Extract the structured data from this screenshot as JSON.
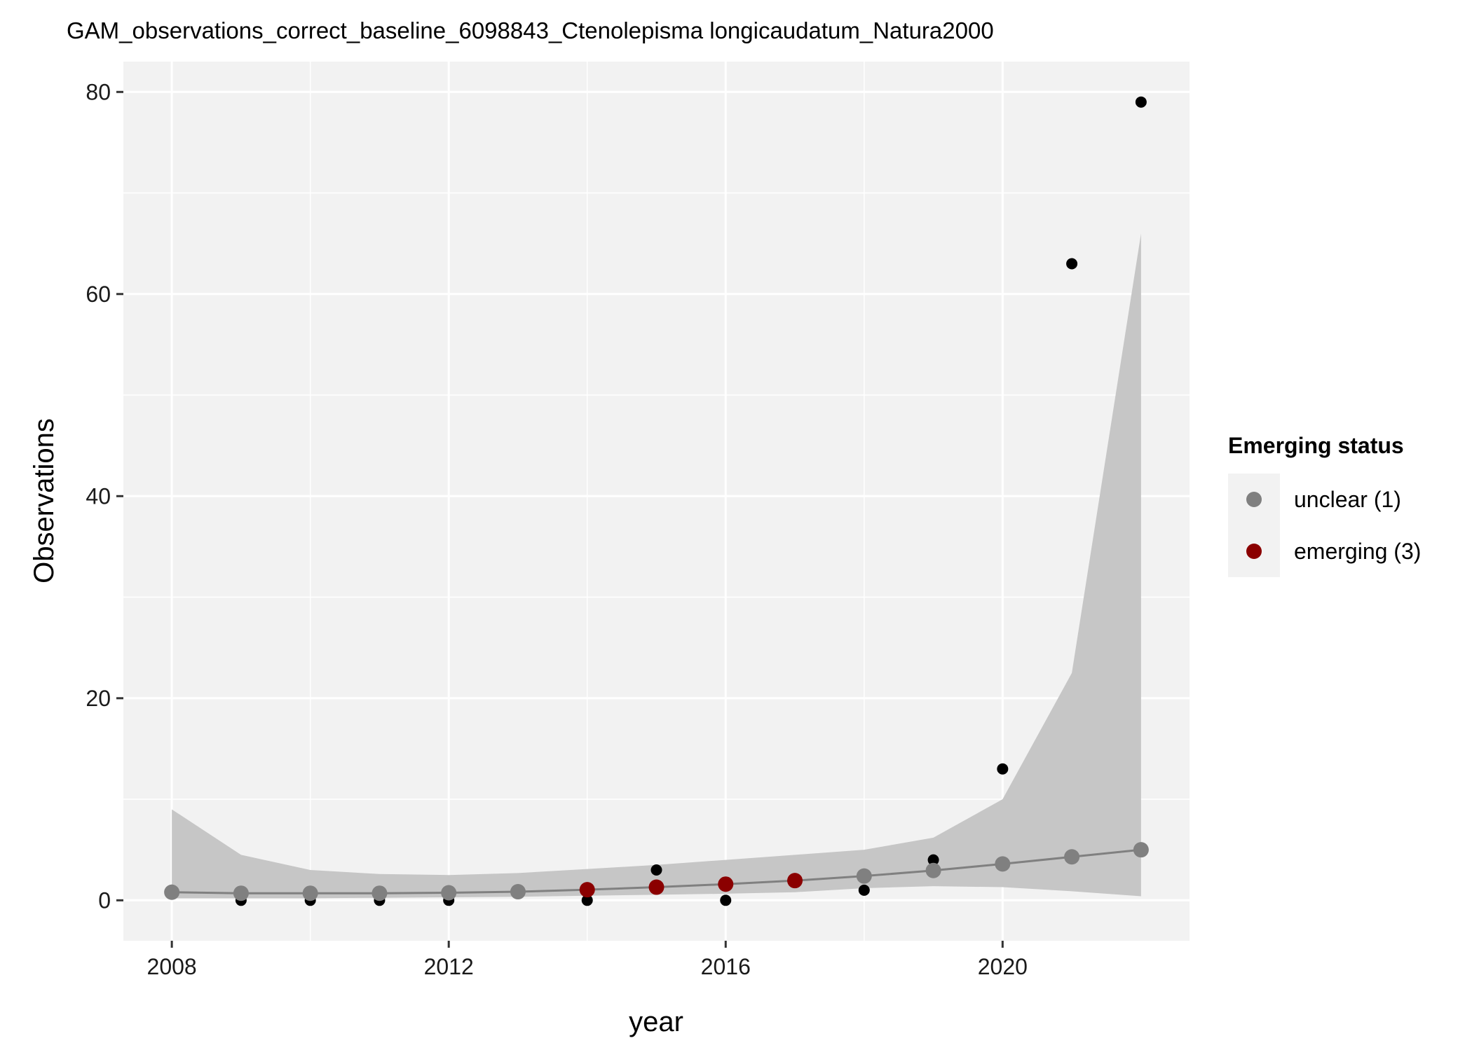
{
  "chart_data": {
    "type": "scatter",
    "title": "GAM_observations_correct_baseline_6098843_Ctenolepisma longicaudatum_Natura2000",
    "xlabel": "year",
    "ylabel": "Observations",
    "xlim": [
      2007.3,
      2022.7
    ],
    "ylim": [
      -4,
      83
    ],
    "x_ticks": [
      2008,
      2012,
      2016,
      2020
    ],
    "x_tick_labels": [
      "2008",
      "2012",
      "2016",
      "2020"
    ],
    "y_ticks": [
      0,
      20,
      40,
      60,
      80
    ],
    "y_tick_labels": [
      "0",
      "20",
      "40",
      "60",
      "80"
    ],
    "grid": true,
    "panel_background": "#f2f2f2",
    "observed": {
      "color": "#000000",
      "x": [
        2008,
        2009,
        2010,
        2011,
        2012,
        2013,
        2014,
        2015,
        2016,
        2017,
        2018,
        2019,
        2020,
        2021,
        2022
      ],
      "y": [
        1,
        0,
        0,
        0,
        0,
        1,
        0,
        3,
        0,
        2,
        1,
        4,
        13,
        63,
        79
      ]
    },
    "fit": {
      "line_color": "#808080",
      "ribbon_color": "#c6c6c6",
      "x": [
        2008,
        2009,
        2010,
        2011,
        2012,
        2013,
        2014,
        2015,
        2016,
        2017,
        2018,
        2019,
        2020,
        2021,
        2022
      ],
      "y": [
        0.8,
        0.7,
        0.7,
        0.7,
        0.75,
        0.85,
        1.05,
        1.3,
        1.6,
        1.95,
        2.4,
        2.95,
        3.6,
        4.3,
        5.0
      ],
      "lower": [
        0.2,
        0.2,
        0.2,
        0.25,
        0.3,
        0.35,
        0.45,
        0.55,
        0.65,
        0.8,
        1.2,
        1.4,
        1.3,
        0.9,
        0.4
      ],
      "upper": [
        9.0,
        4.5,
        3.0,
        2.6,
        2.5,
        2.7,
        3.1,
        3.5,
        4.0,
        4.5,
        5.0,
        6.2,
        10.0,
        22.5,
        66.0
      ],
      "status": [
        "unclear",
        "unclear",
        "unclear",
        "unclear",
        "unclear",
        "unclear",
        "emerging",
        "emerging",
        "emerging",
        "emerging",
        "unclear",
        "unclear",
        "unclear",
        "unclear",
        "unclear"
      ]
    },
    "legend": {
      "title": "Emerging status",
      "position": "right",
      "entries": [
        {
          "key": "unclear",
          "label": "unclear (1)",
          "color": "#808080"
        },
        {
          "key": "emerging",
          "label": "emerging (3)",
          "color": "#8b0000"
        }
      ]
    }
  }
}
